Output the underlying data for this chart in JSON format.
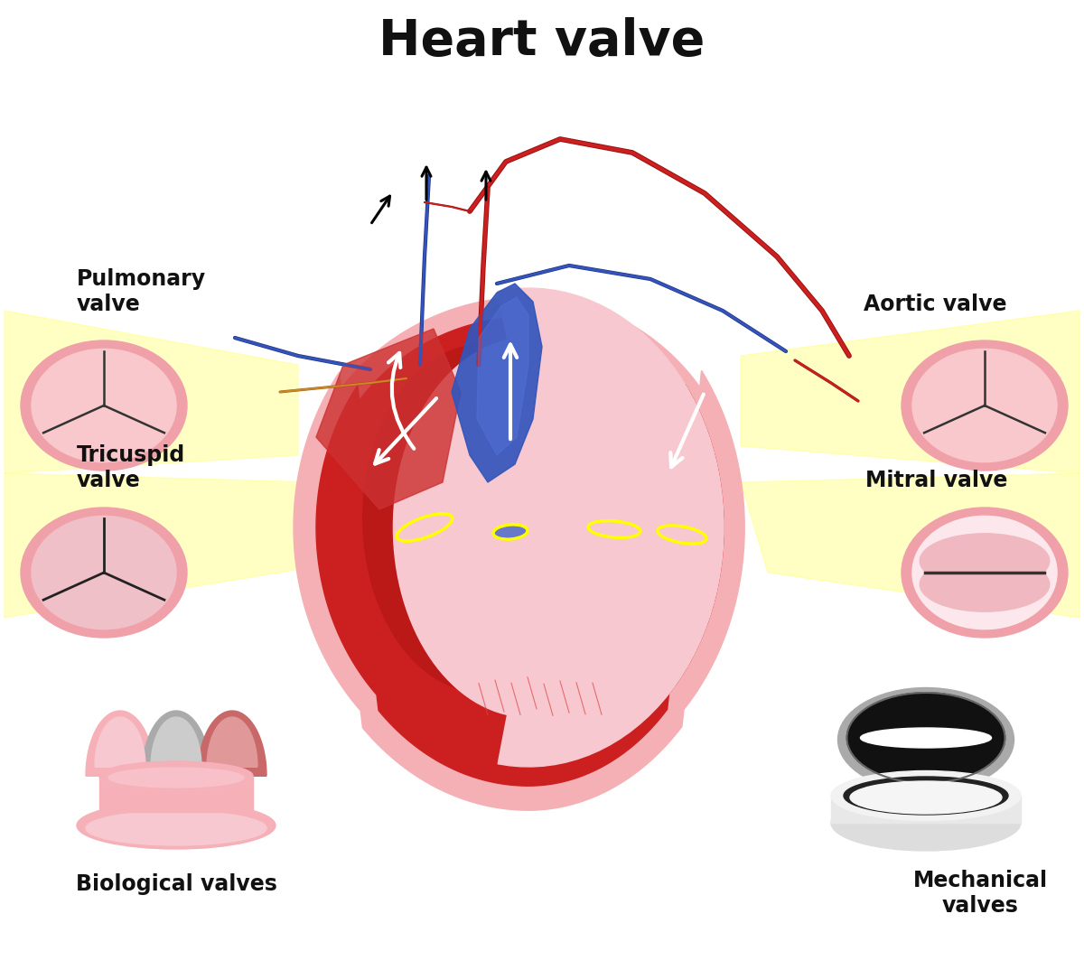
{
  "title": "Heart valve",
  "title_fontsize": 40,
  "title_fontweight": "bold",
  "bg_color": "#ffffff",
  "labels": {
    "pulmonary_valve": "Pulmonary\nvalve",
    "tricuspid_valve": "Tricuspid\nvalve",
    "aortic_valve": "Aortic valve",
    "mitral_valve": "Mitral valve",
    "biological_valves": "Biological valves",
    "mechanical_valves": "Mechanical\nvalves"
  },
  "label_fontsize": 17,
  "label_fontweight": "bold",
  "pink_border": "#f0a0a8",
  "pink_medium": "#f8c0c8",
  "pink_light": "#fce8ec",
  "pink_very_light": "#fdf0f2",
  "heart_red": "#cc2020",
  "heart_dark_red": "#8b0808",
  "heart_red_medium": "#aa1515",
  "heart_blue": "#3355bb",
  "heart_blue_light": "#5577dd",
  "heart_blue_dark": "#223388",
  "yellow_beam": "#ffff88",
  "yellow_beam_alpha": 0.5,
  "yellow_ellipse_col": "#ffff00",
  "orange_vessel": "#cc8822",
  "white": "#ffffff",
  "black": "#111111",
  "silver_dark": "#888888",
  "silver": "#cccccc",
  "silver_light": "#eeeeee",
  "gray_bio": "#aaaaaa",
  "dark": "#222222"
}
